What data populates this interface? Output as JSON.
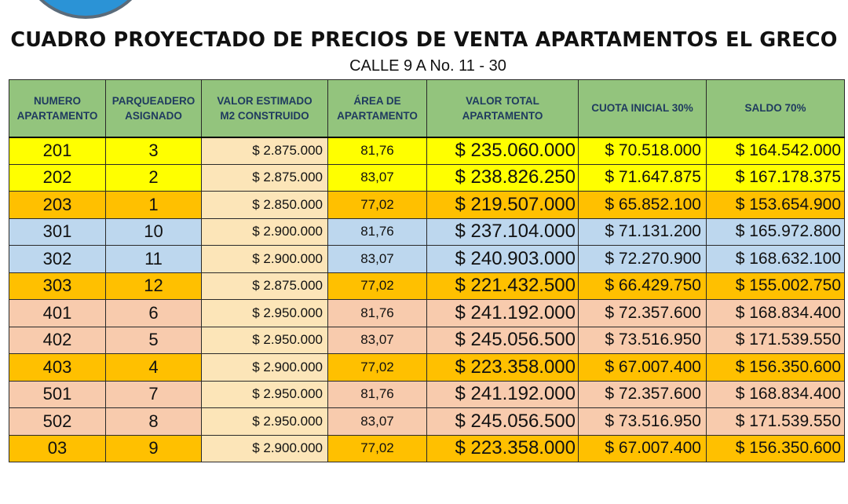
{
  "title": "CUADRO PROYECTADO DE PRECIOS DE VENTA APARTAMENTOS EL GRECO",
  "subtitle": "CALLE 9 A No. 11 - 30",
  "headers": [
    [
      "NUMERO",
      "APARTAMENTO"
    ],
    [
      "PARQUEADERO",
      "ASIGNADO"
    ],
    [
      "VALOR ESTIMADO",
      "M2 CONSTRUIDO"
    ],
    [
      "ÁREA DE",
      "APARTAMENTO"
    ],
    [
      "VALOR TOTAL",
      "APARTAMENTO"
    ],
    [
      "CUOTA INICIAL 30%",
      ""
    ],
    [
      "SALDO 70%",
      ""
    ]
  ],
  "colors": {
    "yellow": "#ffff00",
    "orange": "#ffc000",
    "blue": "#bdd7ee",
    "salmon": "#f8cbad",
    "header": "#93c47d"
  },
  "rows": [
    {
      "apt": "201",
      "park": "3",
      "m2": "$ 2.875.000",
      "area": "81,76",
      "total": "$ 235.060.000",
      "cuota": "$ 70.518.000",
      "saldo": "$ 164.542.000",
      "color": "yellow"
    },
    {
      "apt": "202",
      "park": "2",
      "m2": "$ 2.875.000",
      "area": "83,07",
      "total": "$ 238.826.250",
      "cuota": "$ 71.647.875",
      "saldo": "$ 167.178.375",
      "color": "yellow"
    },
    {
      "apt": "203",
      "park": "1",
      "m2": "$ 2.850.000",
      "area": "77,02",
      "total": "$ 219.507.000",
      "cuota": "$ 65.852.100",
      "saldo": "$ 153.654.900",
      "color": "orange"
    },
    {
      "apt": "301",
      "park": "10",
      "m2": "$ 2.900.000",
      "area": "81,76",
      "total": "$ 237.104.000",
      "cuota": "$ 71.131.200",
      "saldo": "$ 165.972.800",
      "color": "blue"
    },
    {
      "apt": "302",
      "park": "11",
      "m2": "$ 2.900.000",
      "area": "83,07",
      "total": "$ 240.903.000",
      "cuota": "$ 72.270.900",
      "saldo": "$ 168.632.100",
      "color": "blue"
    },
    {
      "apt": "303",
      "park": "12",
      "m2": "$ 2.875.000",
      "area": "77,02",
      "total": "$ 221.432.500",
      "cuota": "$ 66.429.750",
      "saldo": "$ 155.002.750",
      "color": "orange"
    },
    {
      "apt": "401",
      "park": "6",
      "m2": "$ 2.950.000",
      "area": "81,76",
      "total": "$ 241.192.000",
      "cuota": "$ 72.357.600",
      "saldo": "$ 168.834.400",
      "color": "salmon"
    },
    {
      "apt": "402",
      "park": "5",
      "m2": "$ 2.950.000",
      "area": "83,07",
      "total": "$ 245.056.500",
      "cuota": "$ 73.516.950",
      "saldo": "$ 171.539.550",
      "color": "salmon"
    },
    {
      "apt": "403",
      "park": "4",
      "m2": "$ 2.900.000",
      "area": "77,02",
      "total": "$ 223.358.000",
      "cuota": "$ 67.007.400",
      "saldo": "$ 156.350.600",
      "color": "orange"
    },
    {
      "apt": "501",
      "park": "7",
      "m2": "$ 2.950.000",
      "area": "81,76",
      "total": "$ 241.192.000",
      "cuota": "$ 72.357.600",
      "saldo": "$ 168.834.400",
      "color": "salmon"
    },
    {
      "apt": "502",
      "park": "8",
      "m2": "$ 2.950.000",
      "area": "83,07",
      "total": "$ 245.056.500",
      "cuota": "$ 73.516.950",
      "saldo": "$ 171.539.550",
      "color": "salmon"
    },
    {
      "apt": "03",
      "park": "9",
      "m2": "$ 2.900.000",
      "area": "77,02",
      "total": "$ 223.358.000",
      "cuota": "$ 67.007.400",
      "saldo": "$ 156.350.600",
      "color": "orange"
    }
  ]
}
